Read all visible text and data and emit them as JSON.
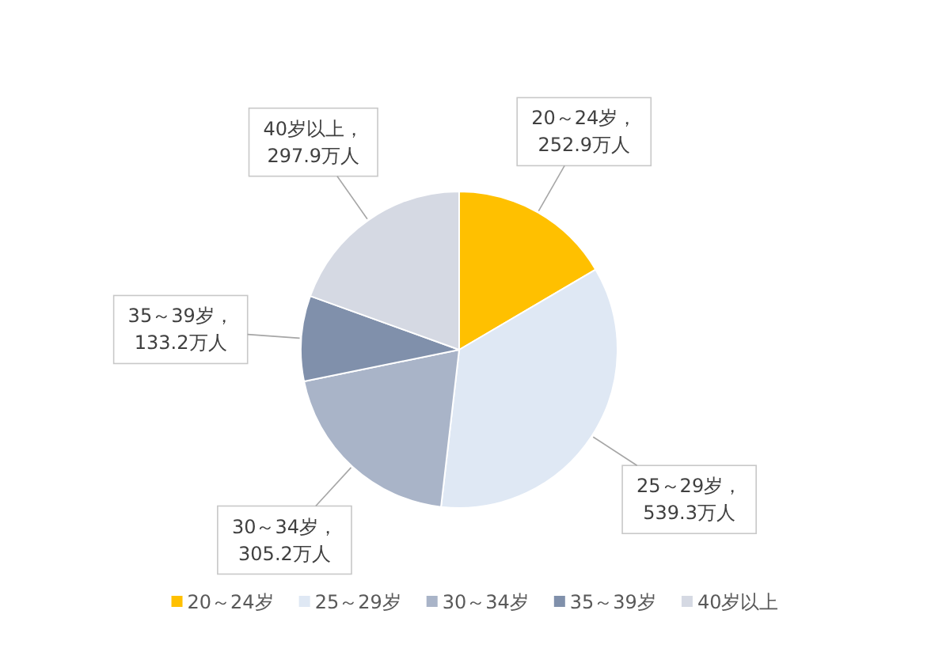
{
  "chart_data": {
    "type": "pie",
    "categories": [
      "20～24岁",
      "25～29岁",
      "30～34岁",
      "35～39岁",
      "40岁以上"
    ],
    "values": [
      252.9,
      539.3,
      305.2,
      133.2,
      297.9
    ],
    "colors": [
      "#ffc000",
      "#dfe8f4",
      "#a9b4c8",
      "#8090ab",
      "#d5d9e3"
    ],
    "value_labels": [
      "20～24岁，\n252.9万人",
      "25～29岁，\n539.3万人",
      "30～34岁，\n305.2万人",
      "35～39岁，\n133.2万人",
      "40岁以上，\n297.9万人"
    ],
    "legend": "bottom"
  }
}
